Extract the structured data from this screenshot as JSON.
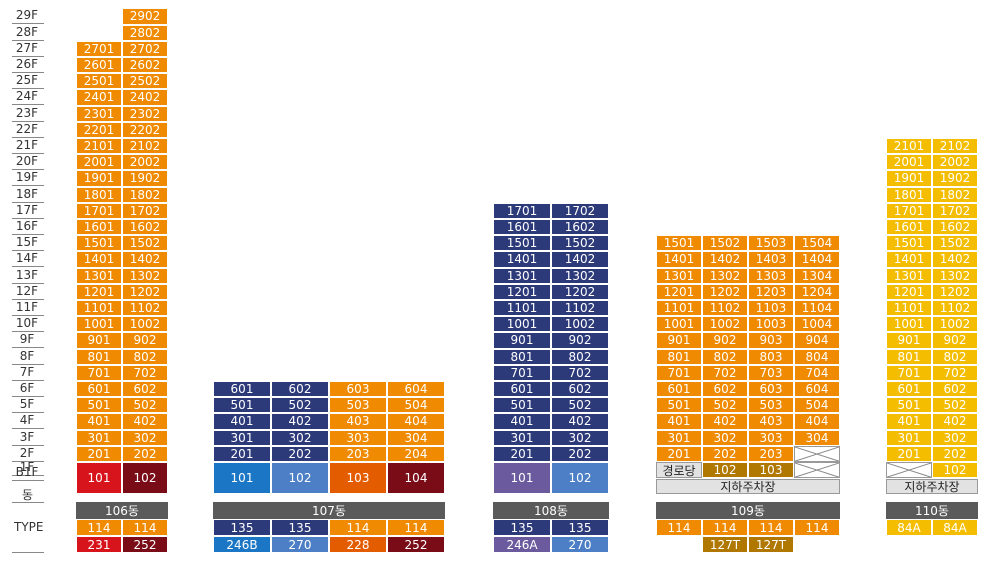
{
  "floor_axis": {
    "floors": [
      "29F",
      "28F",
      "27F",
      "26F",
      "25F",
      "24F",
      "23F",
      "22F",
      "21F",
      "20F",
      "19F",
      "18F",
      "17F",
      "16F",
      "15F",
      "14F",
      "13F",
      "12F",
      "11F",
      "10F",
      "9F",
      "8F",
      "7F",
      "6F",
      "5F",
      "4F",
      "3F",
      "2F",
      "1F",
      "B1F"
    ],
    "dong_label": "동",
    "type_label": "TYPE"
  },
  "colors": {
    "orange": "#f08a00",
    "navy": "#2d3a7a",
    "yellow": "#f5bd00",
    "red": "#d7141c",
    "maroon": "#7a0c18",
    "blue": "#1b77c5",
    "lightblue": "#4d7fc6",
    "deeporange": "#e45c00",
    "purple": "#6b5b9e",
    "gold": "#b07800",
    "gray": "#5a5a5a",
    "light": "#e2e2e2"
  },
  "buildings": [
    {
      "name": "106동",
      "cols": 2,
      "main_color": "orange",
      "floors": {
        "29": [
          "",
          "2902"
        ],
        "28": [
          "",
          "2802"
        ],
        "27": [
          "2701",
          "2702"
        ],
        "26": [
          "2601",
          "2602"
        ],
        "25": [
          "2501",
          "2502"
        ],
        "24": [
          "2401",
          "2402"
        ],
        "23": [
          "2301",
          "2302"
        ],
        "22": [
          "2201",
          "2202"
        ],
        "21": [
          "2101",
          "2102"
        ],
        "20": [
          "2001",
          "2002"
        ],
        "19": [
          "1901",
          "1902"
        ],
        "18": [
          "1801",
          "1802"
        ],
        "17": [
          "1701",
          "1702"
        ],
        "16": [
          "1601",
          "1602"
        ],
        "15": [
          "1501",
          "1502"
        ],
        "14": [
          "1401",
          "1402"
        ],
        "13": [
          "1301",
          "1302"
        ],
        "12": [
          "1201",
          "1202"
        ],
        "11": [
          "1101",
          "1102"
        ],
        "10": [
          "1001",
          "1002"
        ],
        "9": [
          "901",
          "902"
        ],
        "8": [
          "801",
          "802"
        ],
        "7": [
          "701",
          "702"
        ],
        "6": [
          "601",
          "602"
        ],
        "5": [
          "501",
          "502"
        ],
        "4": [
          "401",
          "402"
        ],
        "3": [
          "301",
          "302"
        ],
        "2": [
          "201",
          "202"
        ]
      },
      "first_floor": [
        {
          "label": "101",
          "color": "red"
        },
        {
          "label": "102",
          "color": "maroon"
        }
      ],
      "first_floor_tall": true,
      "parking": "",
      "types": [
        "114",
        "114"
      ],
      "sub_types": [
        {
          "label": "231",
          "color": "red"
        },
        {
          "label": "252",
          "color": "maroon"
        }
      ]
    },
    {
      "name": "107동",
      "cols": 4,
      "col_colors": [
        "navy",
        "navy",
        "orange",
        "orange"
      ],
      "floors": {
        "6": [
          "601",
          "602",
          "603",
          "604"
        ],
        "5": [
          "501",
          "502",
          "503",
          "504"
        ],
        "4": [
          "401",
          "402",
          "403",
          "404"
        ],
        "3": [
          "301",
          "302",
          "303",
          "304"
        ],
        "2": [
          "201",
          "202",
          "203",
          "204"
        ]
      },
      "first_floor": [
        {
          "label": "101",
          "color": "blue"
        },
        {
          "label": "102",
          "color": "lightblue"
        },
        {
          "label": "103",
          "color": "deeporange"
        },
        {
          "label": "104",
          "color": "maroon"
        }
      ],
      "first_floor_tall": true,
      "parking": "",
      "types": [
        "135",
        "135",
        "114",
        "114"
      ],
      "type_colors": [
        "navy",
        "navy",
        "orange",
        "orange"
      ],
      "sub_types": [
        {
          "label": "246B",
          "color": "blue"
        },
        {
          "label": "270",
          "color": "lightblue"
        },
        {
          "label": "228",
          "color": "deeporange"
        },
        {
          "label": "252",
          "color": "maroon"
        }
      ]
    },
    {
      "name": "108동",
      "cols": 2,
      "main_color": "navy",
      "floors": {
        "17": [
          "1701",
          "1702"
        ],
        "16": [
          "1601",
          "1602"
        ],
        "15": [
          "1501",
          "1502"
        ],
        "14": [
          "1401",
          "1402"
        ],
        "13": [
          "1301",
          "1302"
        ],
        "12": [
          "1201",
          "1202"
        ],
        "11": [
          "1101",
          "1102"
        ],
        "10": [
          "1001",
          "1002"
        ],
        "9": [
          "901",
          "902"
        ],
        "8": [
          "801",
          "802"
        ],
        "7": [
          "701",
          "702"
        ],
        "6": [
          "601",
          "602"
        ],
        "5": [
          "501",
          "502"
        ],
        "4": [
          "401",
          "402"
        ],
        "3": [
          "301",
          "302"
        ],
        "2": [
          "201",
          "202"
        ]
      },
      "first_floor": [
        {
          "label": "101",
          "color": "purple"
        },
        {
          "label": "102",
          "color": "lightblue"
        }
      ],
      "first_floor_tall": true,
      "parking": "",
      "types": [
        "135",
        "135"
      ],
      "type_colors": [
        "navy",
        "navy"
      ],
      "sub_types": [
        {
          "label": "246A",
          "color": "purple"
        },
        {
          "label": "270",
          "color": "lightblue"
        }
      ]
    },
    {
      "name": "109동",
      "cols": 4,
      "main_color": "orange",
      "floors": {
        "15": [
          "1501",
          "1502",
          "1503",
          "1504"
        ],
        "14": [
          "1401",
          "1402",
          "1403",
          "1404"
        ],
        "13": [
          "1301",
          "1302",
          "1303",
          "1304"
        ],
        "12": [
          "1201",
          "1202",
          "1203",
          "1204"
        ],
        "11": [
          "1101",
          "1102",
          "1103",
          "1104"
        ],
        "10": [
          "1001",
          "1002",
          "1003",
          "1004"
        ],
        "9": [
          "901",
          "902",
          "903",
          "904"
        ],
        "8": [
          "801",
          "802",
          "803",
          "804"
        ],
        "7": [
          "701",
          "702",
          "703",
          "704"
        ],
        "6": [
          "601",
          "602",
          "603",
          "604"
        ],
        "5": [
          "501",
          "502",
          "503",
          "504"
        ],
        "4": [
          "401",
          "402",
          "403",
          "404"
        ],
        "3": [
          "301",
          "302",
          "303",
          "304"
        ],
        "2": [
          "201",
          "202",
          "203",
          "X"
        ]
      },
      "first_floor": [
        {
          "label": "경로당",
          "color": "light"
        },
        {
          "label": "102",
          "color": "gold"
        },
        {
          "label": "103",
          "color": "gold"
        },
        {
          "label": "X",
          "color": "x"
        }
      ],
      "first_floor_tall": false,
      "parking": "지하주차장",
      "types": [
        "114",
        "114",
        "114",
        "114"
      ],
      "sub_types": [
        {
          "label": "",
          "color": ""
        },
        {
          "label": "127T",
          "color": "gold"
        },
        {
          "label": "127T",
          "color": "gold"
        },
        {
          "label": "",
          "color": ""
        }
      ]
    },
    {
      "name": "110동",
      "cols": 2,
      "main_color": "yellow",
      "floors": {
        "21": [
          "2101",
          "2102"
        ],
        "20": [
          "2001",
          "2002"
        ],
        "19": [
          "1901",
          "1902"
        ],
        "18": [
          "1801",
          "1802"
        ],
        "17": [
          "1701",
          "1702"
        ],
        "16": [
          "1601",
          "1602"
        ],
        "15": [
          "1501",
          "1502"
        ],
        "14": [
          "1401",
          "1402"
        ],
        "13": [
          "1301",
          "1302"
        ],
        "12": [
          "1201",
          "1202"
        ],
        "11": [
          "1101",
          "1102"
        ],
        "10": [
          "1001",
          "1002"
        ],
        "9": [
          "901",
          "902"
        ],
        "8": [
          "801",
          "802"
        ],
        "7": [
          "701",
          "702"
        ],
        "6": [
          "601",
          "602"
        ],
        "5": [
          "501",
          "502"
        ],
        "4": [
          "401",
          "402"
        ],
        "3": [
          "301",
          "302"
        ],
        "2": [
          "201",
          "202"
        ]
      },
      "first_floor": [
        {
          "label": "X",
          "color": "x"
        },
        {
          "label": "102",
          "color": "yellow"
        }
      ],
      "first_floor_tall": false,
      "parking": "지하주차장",
      "types": [
        "84A",
        "84A"
      ],
      "type_colors": [
        "yellow",
        "yellow"
      ],
      "sub_types": []
    }
  ]
}
